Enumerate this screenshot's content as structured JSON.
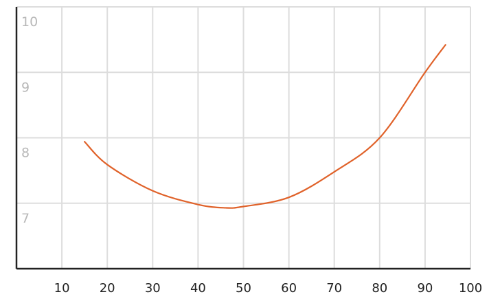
{
  "chart_data": {
    "type": "line",
    "title": "",
    "xlabel": "",
    "ylabel": "",
    "xlim": [
      0,
      100
    ],
    "ylim": [
      6,
      10
    ],
    "x_ticks": [
      "10",
      "20",
      "30",
      "40",
      "50",
      "60",
      "70",
      "80",
      "90",
      "100"
    ],
    "y_ticks": [
      "7",
      "8",
      "9",
      "10"
    ],
    "grid": true,
    "series": [
      {
        "color": "#e0622a",
        "x": [
          15,
          20,
          30,
          40,
          46,
          50,
          60,
          70,
          80,
          90,
          94.5
        ],
        "y": [
          7.94,
          7.59,
          7.19,
          6.98,
          6.93,
          6.95,
          7.09,
          7.48,
          8.0,
          9.0,
          9.42
        ]
      }
    ],
    "colors": {
      "grid": "#dddddd",
      "axis": "#222222",
      "y_tick_text": "#b8b8b8",
      "x_tick_text": "#222222"
    }
  }
}
